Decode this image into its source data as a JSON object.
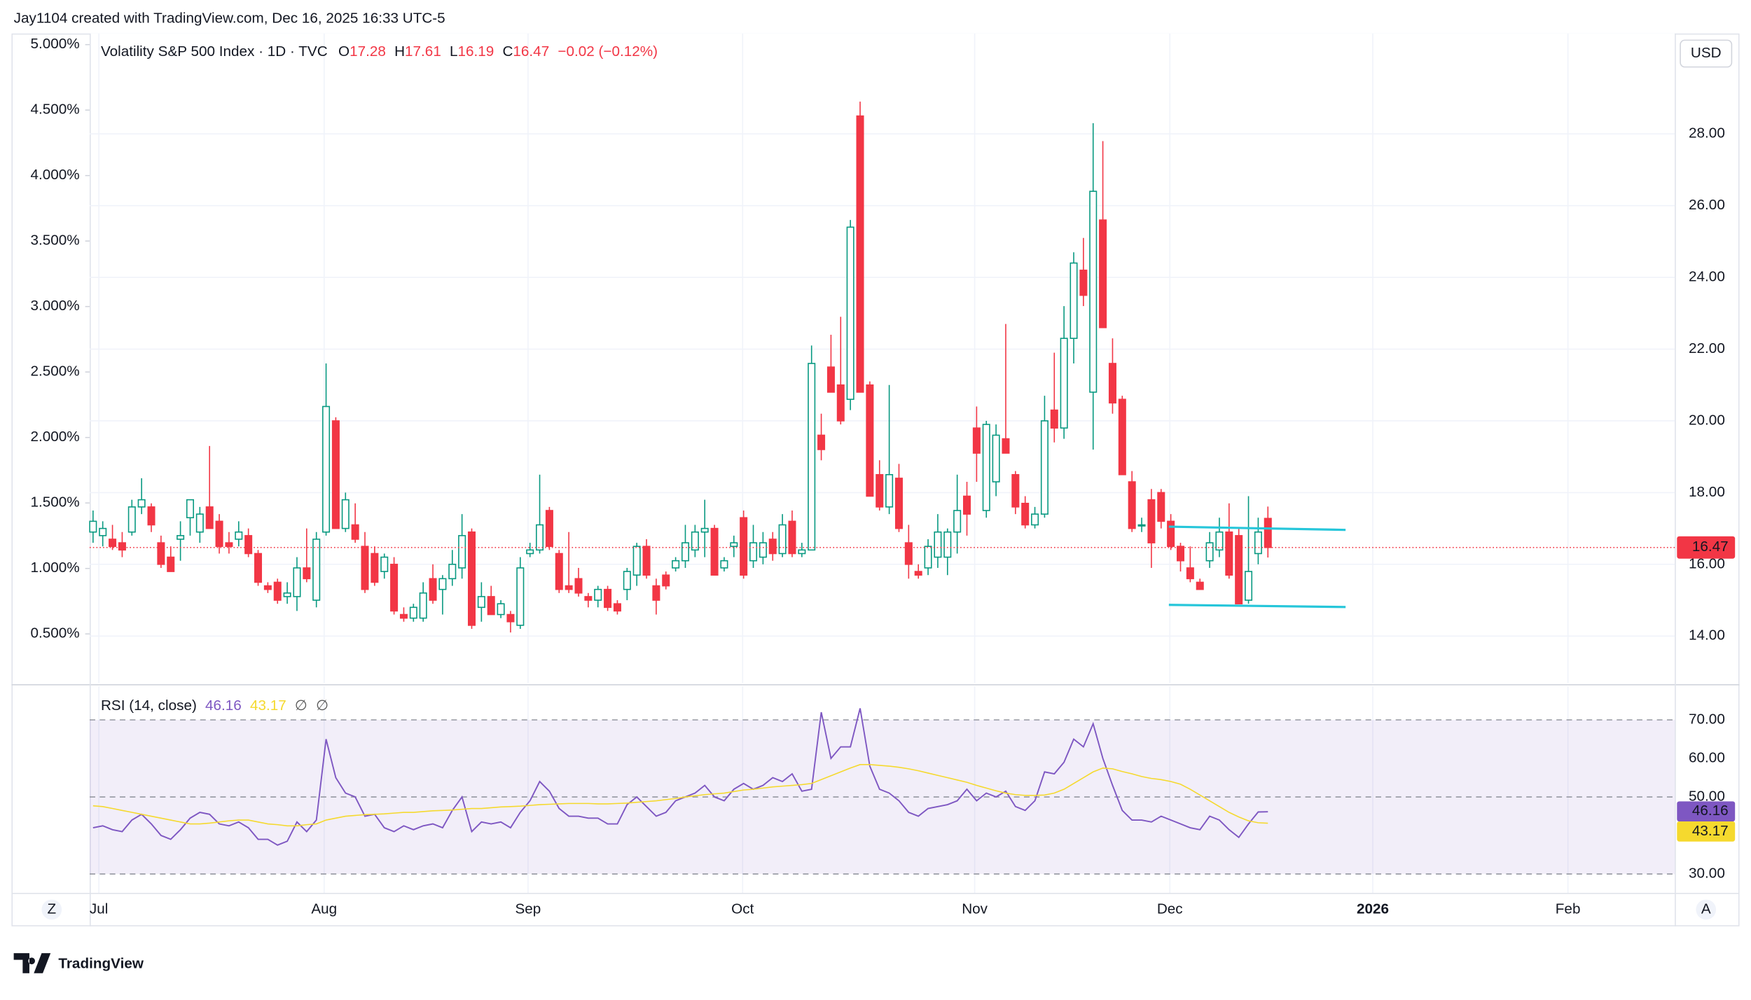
{
  "created_by": "Jay1104 created with TradingView.com, Dec 16, 2025 16:33 UTC-5",
  "logo": "TradingView",
  "buttons": [
    "Z",
    "A"
  ],
  "chart_data": [
    {
      "type": "candlestick",
      "title": "Volatility S&P 500 Index · 1D · TVC",
      "ohlc_keys": [
        "O",
        "H",
        "L",
        "C"
      ],
      "change_label": "−0.02 (−0.12%)",
      "currency": "USD",
      "up_color": "#089981",
      "down_color": "#f23645",
      "open": [
        16.9,
        16.8,
        16.7,
        16.6,
        16.9,
        17.6,
        17.6,
        16.6,
        16.2,
        16.7,
        17.3,
        16.9,
        17.6,
        17.2,
        16.6,
        16.7,
        16.8,
        16.3,
        15.4,
        15.5,
        15.1,
        15.1,
        15.9,
        15.0,
        16.9,
        20.0,
        17.0,
        17.1,
        16.5,
        16.3,
        15.8,
        16.0,
        14.6,
        14.5,
        14.5,
        15.6,
        15.3,
        15.6,
        15.9,
        16.9,
        14.8,
        15.1,
        14.6,
        14.6,
        14.3,
        16.3,
        16.4,
        17.5,
        16.3,
        15.4,
        15.6,
        15.1,
        15.0,
        15.3,
        14.9,
        15.3,
        15.7,
        16.5,
        15.4,
        15.7,
        15.9,
        16.1,
        16.4,
        16.9,
        17.0,
        15.9,
        16.5,
        17.3,
        16.1,
        16.2,
        16.7,
        16.3,
        17.2,
        16.3,
        16.4,
        19.6,
        21.5,
        21.0,
        20.6,
        28.5,
        21.0,
        18.5,
        17.6,
        18.4,
        16.6,
        15.8,
        15.9,
        16.2,
        16.2,
        16.9,
        17.9,
        19.8,
        17.5,
        18.3,
        19.5,
        18.5,
        17.7,
        17.1,
        17.4,
        20.3,
        19.8,
        22.3,
        24.2,
        20.8,
        25.6,
        21.6,
        20.6,
        18.3,
        17.1,
        17.8,
        18.0,
        17.2,
        16.5,
        15.9,
        15.5,
        16.1,
        16.4,
        16.9,
        16.8,
        15.0,
        16.3,
        17.28
      ],
      "high": [
        17.5,
        17.2,
        17.1,
        16.9,
        17.8,
        18.4,
        17.7,
        16.8,
        16.5,
        17.2,
        17.8,
        17.6,
        19.3,
        17.4,
        16.9,
        17.2,
        17.0,
        16.4,
        15.5,
        15.6,
        15.5,
        16.2,
        17.0,
        16.9,
        21.6,
        20.1,
        18.0,
        17.7,
        16.9,
        16.5,
        16.3,
        16.2,
        14.8,
        14.9,
        15.5,
        16.0,
        15.7,
        16.4,
        17.4,
        17.0,
        15.5,
        15.4,
        15.0,
        14.7,
        16.2,
        16.6,
        18.5,
        17.6,
        16.4,
        16.9,
        15.9,
        15.2,
        15.4,
        15.4,
        15.0,
        15.9,
        16.6,
        16.7,
        15.6,
        15.8,
        16.2,
        17.1,
        17.1,
        17.8,
        17.1,
        16.2,
        16.8,
        17.5,
        17.1,
        16.9,
        16.9,
        17.4,
        17.5,
        16.6,
        22.1,
        20.2,
        22.4,
        22.9,
        25.6,
        28.9,
        21.1,
        18.9,
        21.0,
        18.8,
        17.1,
        16.0,
        16.7,
        17.4,
        17.0,
        18.5,
        18.3,
        20.4,
        20.0,
        19.9,
        22.7,
        18.6,
        17.9,
        17.6,
        20.7,
        21.9,
        23.2,
        24.7,
        25.1,
        28.3,
        27.8,
        22.3,
        20.7,
        18.6,
        17.3,
        18.1,
        18.1,
        17.4,
        16.6,
        16.5,
        15.6,
        16.9,
        17.3,
        17.7,
        17.0,
        17.9,
        17.3,
        17.61
      ],
      "low": [
        16.6,
        16.5,
        16.4,
        16.2,
        16.8,
        17.4,
        16.9,
        15.9,
        15.8,
        16.1,
        16.8,
        16.6,
        17.0,
        16.3,
        16.3,
        16.5,
        16.2,
        15.4,
        15.2,
        14.9,
        14.9,
        14.7,
        15.5,
        14.8,
        16.8,
        17.0,
        16.9,
        16.6,
        15.2,
        15.4,
        15.6,
        14.6,
        14.4,
        14.4,
        14.4,
        14.9,
        14.6,
        15.4,
        15.6,
        14.2,
        14.4,
        14.6,
        14.5,
        14.1,
        14.2,
        16.2,
        16.3,
        16.4,
        15.2,
        15.2,
        15.1,
        14.8,
        14.8,
        14.7,
        14.6,
        15.0,
        15.4,
        15.6,
        14.6,
        15.3,
        15.8,
        15.9,
        16.2,
        16.2,
        15.7,
        15.8,
        16.2,
        15.6,
        15.9,
        16.0,
        16.1,
        16.2,
        16.2,
        16.2,
        16.4,
        18.9,
        20.8,
        19.9,
        20.3,
        20.8,
        17.9,
        17.5,
        17.4,
        16.9,
        15.6,
        15.6,
        15.7,
        15.9,
        15.7,
        16.3,
        16.8,
        18.3,
        17.3,
        17.9,
        19.1,
        17.4,
        17.0,
        17.0,
        17.3,
        19.4,
        19.5,
        21.6,
        23.2,
        19.2,
        22.6,
        20.2,
        18.5,
        16.9,
        16.9,
        15.9,
        17.0,
        16.4,
        15.8,
        15.5,
        15.3,
        15.9,
        16.2,
        15.6,
        14.9,
        14.9,
        16.0,
        16.19
      ],
      "close": [
        17.2,
        17.0,
        16.5,
        16.4,
        17.6,
        17.8,
        17.1,
        16.0,
        15.8,
        16.8,
        17.8,
        17.4,
        17.0,
        16.5,
        16.5,
        16.9,
        16.3,
        15.5,
        15.3,
        15.0,
        15.2,
        15.9,
        15.6,
        16.7,
        20.4,
        17.0,
        17.8,
        16.7,
        15.3,
        15.5,
        16.2,
        14.7,
        14.5,
        14.8,
        15.2,
        15.0,
        15.6,
        16.0,
        16.8,
        14.3,
        15.1,
        14.6,
        14.9,
        14.4,
        15.9,
        16.4,
        17.1,
        16.5,
        15.3,
        15.3,
        15.2,
        15.0,
        15.3,
        14.8,
        14.7,
        15.8,
        16.5,
        15.7,
        15.0,
        15.4,
        16.1,
        16.6,
        16.9,
        17.0,
        15.7,
        16.1,
        16.6,
        15.7,
        16.6,
        16.6,
        16.3,
        17.1,
        16.3,
        16.4,
        21.6,
        19.2,
        20.8,
        20.0,
        25.4,
        20.8,
        17.9,
        17.6,
        18.5,
        17.0,
        16.0,
        15.7,
        16.5,
        16.9,
        16.9,
        17.5,
        17.4,
        19.1,
        19.9,
        19.6,
        19.1,
        17.6,
        17.1,
        17.4,
        20.0,
        19.8,
        22.3,
        24.4,
        23.5,
        26.4,
        22.6,
        20.5,
        18.5,
        17.0,
        17.1,
        16.6,
        17.2,
        16.5,
        16.1,
        15.6,
        15.3,
        16.6,
        16.9,
        15.7,
        14.9,
        15.8,
        16.9,
        16.47
      ],
      "last_price": 16.47,
      "xlim": [
        -0.35,
        162.9
      ],
      "xticks": [
        {
          "value": 0.6,
          "label": "Jul"
        },
        {
          "value": 23.8,
          "label": "Aug"
        },
        {
          "value": 44.8,
          "label": "Sep"
        },
        {
          "value": 66.9,
          "label": "Oct"
        },
        {
          "value": 90.8,
          "label": "Nov"
        },
        {
          "value": 110.9,
          "label": "Dec"
        },
        {
          "value": 131.8,
          "label": "2026"
        },
        {
          "value": 151.9,
          "label": "Feb"
        }
      ],
      "ylim": [
        12.69,
        30.8
      ],
      "yticks": [
        {
          "value": 14,
          "label": "14.00"
        },
        {
          "value": 16,
          "label": "16.00"
        },
        {
          "value": 18,
          "label": "18.00"
        },
        {
          "value": 20,
          "label": "20.00"
        },
        {
          "value": 22,
          "label": "22.00"
        },
        {
          "value": 24,
          "label": "24.00"
        },
        {
          "value": 26,
          "label": "26.00"
        },
        {
          "value": 28,
          "label": "28.00"
        }
      ],
      "y2lim": [
        0.125,
        5.085
      ],
      "y2ticks": [
        {
          "value": 0.5,
          "label": "0.500%"
        },
        {
          "value": 1,
          "label": "1.000%"
        },
        {
          "value": 1.5,
          "label": "1.500%"
        },
        {
          "value": 2,
          "label": "2.000%"
        },
        {
          "value": 2.5,
          "label": "2.500%"
        },
        {
          "value": 3,
          "label": "3.000%"
        },
        {
          "value": 3.5,
          "label": "3.500%"
        },
        {
          "value": 4,
          "label": "4.000%"
        },
        {
          "value": 4.5,
          "label": "4.500%"
        },
        {
          "value": 5,
          "label": "5.000%"
        }
      ],
      "grid": true,
      "trendlines": [
        {
          "color": "#26c6da",
          "x": [
            110.8,
            129
          ],
          "y": [
            17.05,
            16.96
          ]
        },
        {
          "color": "#26c6da",
          "x": [
            110.8,
            129
          ],
          "y": [
            14.87,
            14.81
          ]
        }
      ]
    },
    {
      "type": "line",
      "title": "RSI (14, close)",
      "extra": [
        "∅",
        "∅"
      ],
      "series": [
        {
          "color": "#7e57c2",
          "values": [
            42,
            42.5,
            41.5,
            41,
            44,
            45.5,
            43,
            40,
            39,
            41.5,
            44.5,
            46,
            45.5,
            43,
            42.5,
            43.5,
            42,
            39,
            39,
            37.5,
            38.5,
            43.5,
            41,
            44,
            65,
            55,
            51,
            50,
            45,
            45.5,
            42,
            41,
            42.5,
            41.5,
            42.5,
            43,
            42,
            46.5,
            50,
            41,
            43.5,
            43,
            43.5,
            42,
            46,
            49,
            54,
            51.5,
            47,
            45,
            45,
            44.5,
            44.5,
            43,
            43,
            48,
            50,
            47.5,
            45,
            46,
            49,
            50,
            51,
            53,
            50,
            49,
            52,
            53.5,
            52,
            53,
            55,
            54,
            56,
            51.5,
            52,
            72,
            60,
            63,
            63,
            73,
            58,
            52,
            51,
            49,
            46,
            45,
            47,
            47.5,
            48,
            49,
            52,
            49,
            51,
            50,
            51.5,
            47.5,
            46.5,
            49,
            56.5,
            56,
            59,
            65,
            63,
            69,
            60,
            53,
            46.5,
            44,
            44,
            43.5,
            45,
            44,
            43,
            42,
            41.5,
            45,
            44,
            41.5,
            39.5,
            43,
            46.1,
            46.16
          ]
        },
        {
          "color": "#f5d92e",
          "values": [
            47.7,
            47.5,
            47,
            46.5,
            46,
            45.5,
            45,
            44.5,
            44,
            43.5,
            43,
            43,
            43.2,
            43.5,
            43.8,
            44,
            44,
            43.5,
            43,
            42.8,
            42.5,
            42.5,
            42.8,
            43,
            44,
            44.5,
            45,
            45.2,
            45.4,
            45.5,
            45.6,
            45.8,
            46,
            46,
            46.2,
            46.4,
            46.5,
            46.6,
            46.8,
            47,
            47,
            47.2,
            47.4,
            47.5,
            47.6,
            47.8,
            48,
            48.1,
            48.2,
            48.3,
            48.3,
            48.3,
            48.2,
            48.2,
            48.3,
            48.4,
            48.6,
            48.8,
            49,
            49.3,
            49.6,
            50,
            50.3,
            50.6,
            50.8,
            51,
            51.4,
            51.8,
            52,
            52.3,
            52.6,
            52.8,
            53,
            53.2,
            53.5,
            54.5,
            55.5,
            56.5,
            57.5,
            58.4,
            58.4,
            58.2,
            58,
            57.7,
            57.3,
            56.8,
            56.2,
            55.6,
            55,
            54.4,
            53.8,
            53,
            52.3,
            51.6,
            51,
            50.6,
            50.4,
            50.4,
            50.5,
            51,
            52,
            53.5,
            55,
            56.5,
            57.5,
            57.3,
            56.6,
            56,
            55.3,
            54.8,
            54.5,
            54,
            53.3,
            52,
            50.5,
            49,
            47.5,
            46,
            44.8,
            43.8,
            43.3,
            43.17
          ]
        }
      ],
      "levels": [
        70,
        50,
        30
      ],
      "ylim": [
        25.1,
        78.7
      ],
      "yticks": [
        {
          "value": 70,
          "label": "70.00"
        },
        {
          "value": 60,
          "label": "60.00"
        },
        {
          "value": 50,
          "label": "50.00"
        },
        {
          "value": 30,
          "label": "30.00"
        }
      ]
    }
  ]
}
